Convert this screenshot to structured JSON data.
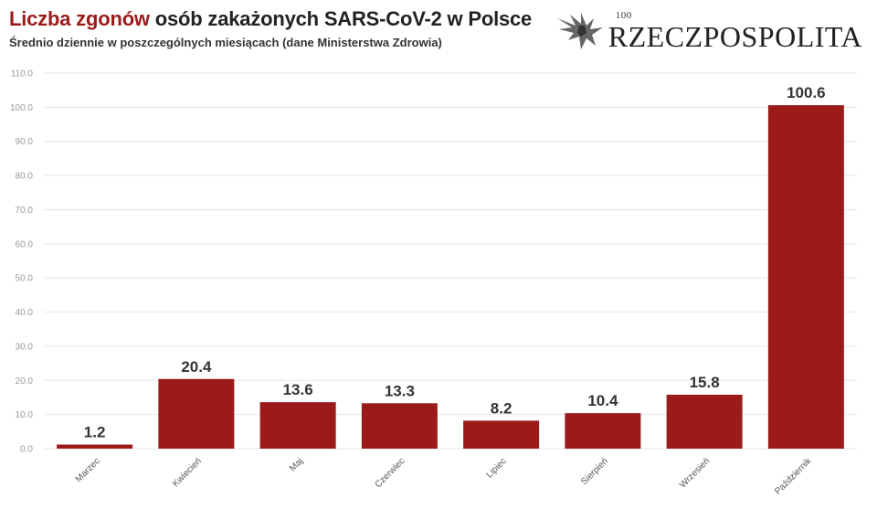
{
  "header": {
    "title_accent": "Liczba zgonów",
    "title_rest": " osób zakażonych SARS-CoV-2 w Polsce",
    "subtitle": "Średnio dziennie w poszczególnych miesiącach (dane Ministerstwa Zdrowia)"
  },
  "logo": {
    "years": "100",
    "name": "RZECZPOSPOLITA",
    "icon": "eagle-icon"
  },
  "colors": {
    "bar": "#9b1b1b",
    "accent": "#9b1b1b",
    "grid": "#e6e6e6",
    "axis_text": "#999999"
  },
  "chart_data": {
    "type": "bar",
    "title": "Liczba zgonów osób zakażonych SARS-CoV-2 w Polsce",
    "subtitle": "Średnio dziennie w poszczególnych miesiącach (dane Ministerstwa Zdrowia)",
    "categories": [
      "Marzec",
      "Kwiecień",
      "Maj",
      "Czerwiec",
      "Lipiec",
      "Sierpień",
      "Wrzesień",
      "Październik"
    ],
    "values": [
      1.2,
      20.4,
      13.6,
      13.3,
      8.2,
      10.4,
      15.8,
      100.6
    ],
    "value_labels": [
      "1.2",
      "20.4",
      "13.6",
      "13.3",
      "8.2",
      "10.4",
      "15.8",
      "100.6"
    ],
    "yticks": [
      "0.0",
      "10.0",
      "20.0",
      "30.0",
      "40.0",
      "50.0",
      "60.0",
      "70.0",
      "80.0",
      "90.0",
      "100.0",
      "110.0"
    ],
    "ylim": [
      0,
      110
    ],
    "xlabel": "",
    "ylabel": "",
    "grid": true,
    "legend": "none"
  }
}
